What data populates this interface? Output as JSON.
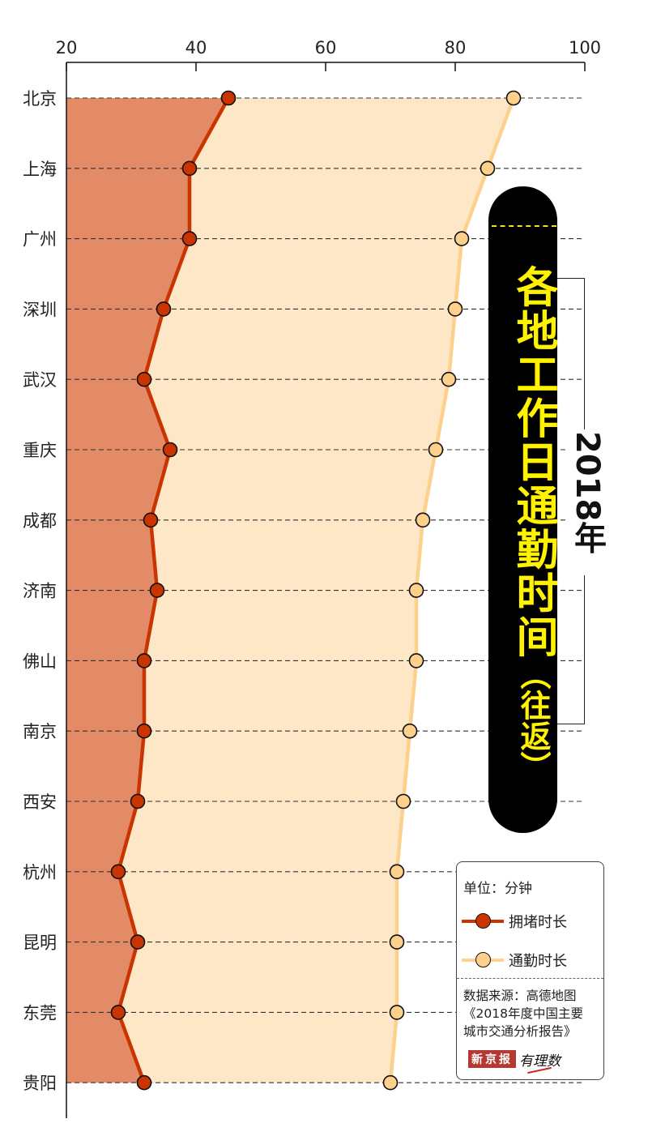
{
  "chart_data": {
    "type": "line",
    "title": "各地工作日通勤时间（往返）",
    "subtitle": "2018年",
    "orientation": "horizontal",
    "x_axis": {
      "min": 20,
      "max": 100,
      "ticks": [
        20,
        40,
        60,
        80,
        100
      ],
      "position": "top"
    },
    "categories": [
      "北京",
      "上海",
      "广州",
      "深圳",
      "武汉",
      "重庆",
      "成都",
      "济南",
      "佛山",
      "南京",
      "西安",
      "杭州",
      "昆明",
      "东莞",
      "贵阳"
    ],
    "series": [
      {
        "name": "拥堵时长",
        "color": "#c93400",
        "fill": "#e28b66",
        "values": [
          45,
          39,
          39,
          35,
          32,
          36,
          33,
          34,
          32,
          32,
          31,
          28,
          31,
          28,
          32
        ]
      },
      {
        "name": "通勤时长",
        "color": "#fdd08c",
        "fill": "#fde7c6",
        "values": [
          89,
          85,
          81,
          80,
          79,
          77,
          75,
          74,
          74,
          73,
          72,
          71,
          71,
          71,
          70
        ]
      }
    ],
    "unit": "分钟",
    "grid": "dashed horizontal per category",
    "legend_position": "bottom-right"
  },
  "title": {
    "main": "各地工作日通勤时间",
    "sub": "（往返）",
    "year": "2018年",
    "text_color": "#fff200",
    "banner_color": "#000000"
  },
  "legend": {
    "unit_label": "单位：分钟",
    "items": [
      {
        "label": "拥堵时长",
        "line_color": "#c93400",
        "dot_color": "#c93400"
      },
      {
        "label": "通勤时长",
        "line_color": "#fdd08c",
        "dot_color": "#fdd08c"
      }
    ],
    "source_lines": [
      "数据来源：高德地图",
      "《2018年度中国主要",
      "城市交通分析报告》"
    ],
    "brand_paper": "新京报",
    "brand_column": "有理数"
  }
}
